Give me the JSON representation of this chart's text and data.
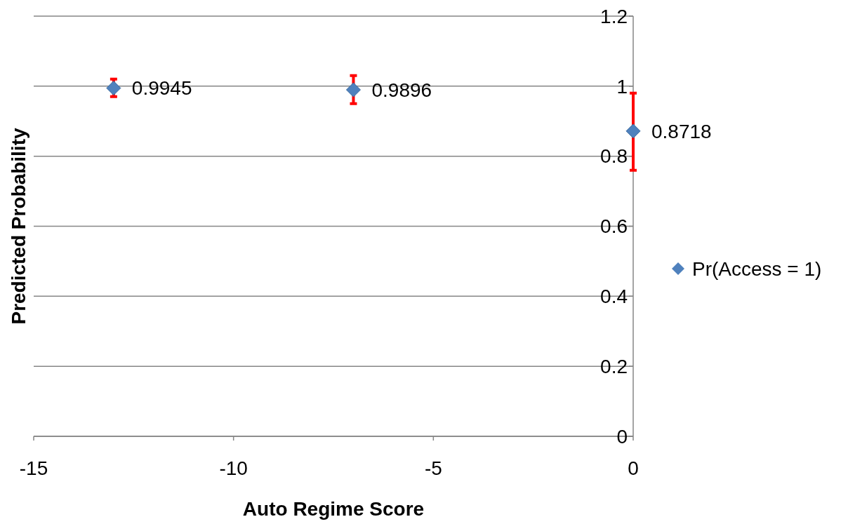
{
  "chart_data": {
    "type": "scatter",
    "xlabel": "Auto Regime Score",
    "ylabel": "Predicted Probability",
    "x": [
      -13,
      -7,
      0
    ],
    "series": [
      {
        "name": "Pr(Access = 1)",
        "color": "#4f81bd",
        "values": [
          0.9945,
          0.9896,
          0.8718
        ],
        "errors": [
          [
            0.97,
            1.02
          ],
          [
            0.95,
            1.03
          ],
          [
            0.76,
            0.98
          ]
        ]
      }
    ],
    "xlim": [
      -15,
      0
    ],
    "xticks": [
      -15,
      -10,
      -5,
      0
    ],
    "ylim": [
      0,
      1.2
    ],
    "yticks": [
      0,
      {
        "value": 0.2,
        "label": "0.2"
      },
      {
        "value": 0.4,
        "label": "0.4"
      },
      {
        "value": 0.6,
        "label": "0.6"
      },
      {
        "value": 0.8,
        "label": "0.8"
      },
      1,
      {
        "value": 1.2,
        "label": "1.2"
      }
    ],
    "grid": "y",
    "legend": "right",
    "marker": "diamond",
    "data_labels": true
  }
}
